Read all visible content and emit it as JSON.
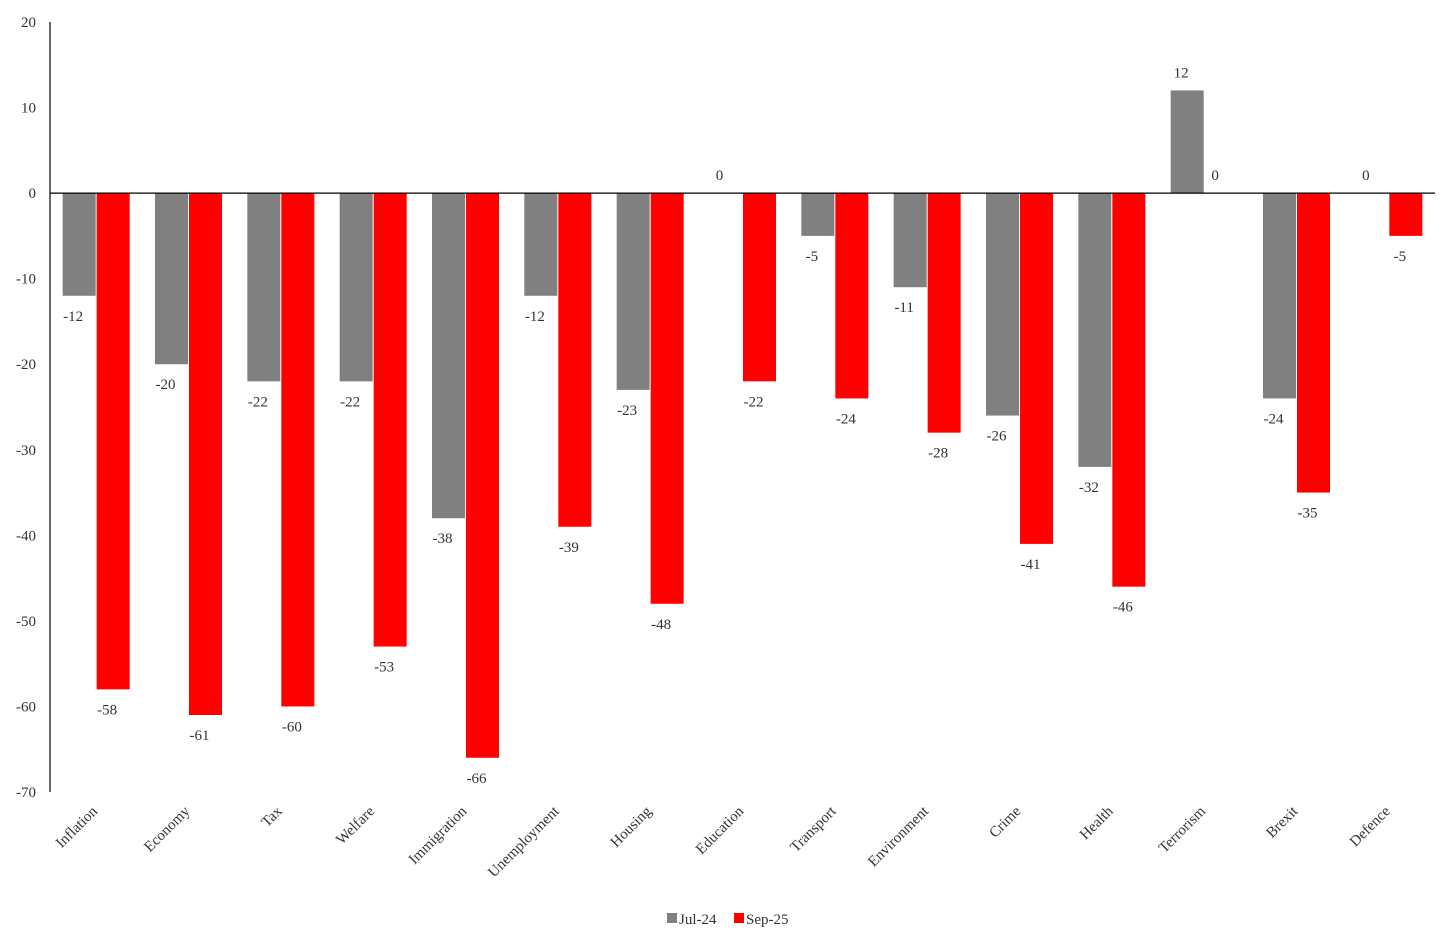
{
  "chart_data": {
    "type": "bar",
    "title": "",
    "xlabel": "",
    "ylabel": "",
    "ylim": [
      -70,
      20
    ],
    "yticks": [
      20,
      10,
      0,
      -10,
      -20,
      -30,
      -40,
      -50,
      -60,
      -70
    ],
    "grid": false,
    "legend_position": "bottom-center",
    "categories": [
      "Inflation",
      "Economy",
      "Tax",
      "Welfare",
      "Immigration",
      "Unemployment",
      "Housing",
      "Education",
      "Transport",
      "Environment",
      "Crime",
      "Health",
      "Terrorism",
      "Brexit",
      "Defence"
    ],
    "series": [
      {
        "name": "Jul-24",
        "color": "#808080",
        "values": [
          -12,
          -20,
          -22,
          -22,
          -38,
          -12,
          -23,
          0,
          -5,
          -11,
          -26,
          -32,
          12,
          -24,
          0
        ]
      },
      {
        "name": "Sep-25",
        "color": "#ff0000",
        "values": [
          -58,
          -61,
          -60,
          -53,
          -66,
          -39,
          -48,
          -22,
          -24,
          -28,
          -41,
          -46,
          0,
          -35,
          -5
        ]
      }
    ]
  }
}
